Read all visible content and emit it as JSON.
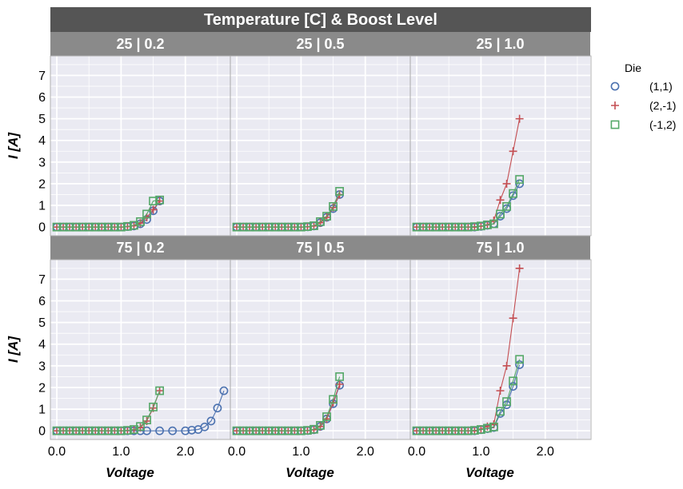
{
  "chart_data": {
    "type": "scatter",
    "title": "Temperature [C] & Boost Level",
    "xlabel": "Voltage",
    "ylabel": "I [A]",
    "xlim": [
      -0.1,
      2.7
    ],
    "ylim": [
      -0.4,
      7.9
    ],
    "xticks": [
      "0.0",
      "1.0",
      "2.0"
    ],
    "xtick_values": [
      0,
      1,
      2
    ],
    "yticks": [
      "0",
      "1",
      "2",
      "3",
      "4",
      "5",
      "6",
      "7"
    ],
    "ytick_values": [
      0,
      1,
      2,
      3,
      4,
      5,
      6,
      7
    ],
    "grid": true,
    "legend": {
      "title": "Die",
      "position": "right",
      "entries": [
        {
          "label": "(1,1)",
          "color": "#4c72b0",
          "marker": "circle"
        },
        {
          "label": "(2,-1)",
          "color": "#c44e52",
          "marker": "plus"
        },
        {
          "label": "(-1,2)",
          "color": "#55a868",
          "marker": "square"
        }
      ]
    },
    "panels": [
      {
        "title": "25 | 0.2",
        "series": [
          {
            "name": "(1,1)",
            "x": [
              0,
              0.1,
              0.2,
              0.3,
              0.4,
              0.5,
              0.6,
              0.7,
              0.8,
              0.9,
              1.0,
              1.1,
              1.2,
              1.3,
              1.4,
              1.5,
              1.6
            ],
            "y": [
              0,
              0,
              0,
              0,
              0,
              0,
              0,
              0,
              0,
              0,
              0,
              0.02,
              0.05,
              0.15,
              0.35,
              0.75,
              1.2
            ]
          },
          {
            "name": "(2,-1)",
            "x": [
              0,
              0.1,
              0.2,
              0.3,
              0.4,
              0.5,
              0.6,
              0.7,
              0.8,
              0.9,
              1.0,
              1.1,
              1.2,
              1.3,
              1.4,
              1.5,
              1.6
            ],
            "y": [
              0,
              0,
              0,
              0,
              0,
              0,
              0,
              0,
              0,
              0,
              0,
              0.02,
              0.06,
              0.18,
              0.45,
              0.8,
              1.2
            ]
          },
          {
            "name": "(-1,2)",
            "x": [
              0,
              0.1,
              0.2,
              0.3,
              0.4,
              0.5,
              0.6,
              0.7,
              0.8,
              0.9,
              1.0,
              1.1,
              1.2,
              1.3,
              1.4,
              1.5,
              1.6
            ],
            "y": [
              0,
              0,
              0,
              0,
              0,
              0,
              0,
              0,
              0,
              0,
              0,
              0.03,
              0.08,
              0.25,
              0.6,
              1.2,
              1.25
            ]
          }
        ]
      },
      {
        "title": "25 | 0.5",
        "series": [
          {
            "name": "(1,1)",
            "x": [
              0,
              0.1,
              0.2,
              0.3,
              0.4,
              0.5,
              0.6,
              0.7,
              0.8,
              0.9,
              1.0,
              1.1,
              1.2,
              1.3,
              1.4,
              1.5,
              1.6
            ],
            "y": [
              0,
              0,
              0,
              0,
              0,
              0,
              0,
              0,
              0,
              0,
              0,
              0.01,
              0.05,
              0.2,
              0.45,
              0.85,
              1.5
            ]
          },
          {
            "name": "(2,-1)",
            "x": [
              0,
              0.1,
              0.2,
              0.3,
              0.4,
              0.5,
              0.6,
              0.7,
              0.8,
              0.9,
              1.0,
              1.1,
              1.2,
              1.3,
              1.4,
              1.5,
              1.6
            ],
            "y": [
              0,
              0,
              0,
              0,
              0,
              0,
              0,
              0,
              0,
              0,
              0,
              0.01,
              0.05,
              0.2,
              0.45,
              0.9,
              1.5
            ]
          },
          {
            "name": "(-1,2)",
            "x": [
              0,
              0.1,
              0.2,
              0.3,
              0.4,
              0.5,
              0.6,
              0.7,
              0.8,
              0.9,
              1.0,
              1.1,
              1.2,
              1.3,
              1.4,
              1.5,
              1.6
            ],
            "y": [
              0,
              0,
              0,
              0,
              0,
              0,
              0,
              0,
              0,
              0,
              0,
              0.02,
              0.06,
              0.25,
              0.5,
              0.95,
              1.65
            ]
          }
        ]
      },
      {
        "title": "25 | 1.0",
        "series": [
          {
            "name": "(1,1)",
            "x": [
              0,
              0.1,
              0.2,
              0.3,
              0.4,
              0.5,
              0.6,
              0.7,
              0.8,
              0.9,
              1.0,
              1.1,
              1.2,
              1.3,
              1.4,
              1.5,
              1.6
            ],
            "y": [
              0,
              0,
              0,
              0,
              0,
              0,
              0,
              0,
              0,
              0,
              0.03,
              0.08,
              0.15,
              0.5,
              0.85,
              1.45,
              2.0
            ]
          },
          {
            "name": "(2,-1)",
            "x": [
              0,
              0.1,
              0.2,
              0.3,
              0.4,
              0.5,
              0.6,
              0.7,
              0.8,
              0.9,
              1.0,
              1.1,
              1.2,
              1.3,
              1.4,
              1.5,
              1.6
            ],
            "y": [
              0,
              0,
              0,
              0,
              0,
              0,
              0,
              0,
              0,
              0,
              0.04,
              0.1,
              0.3,
              1.25,
              2.0,
              3.5,
              5.0
            ]
          },
          {
            "name": "(-1,2)",
            "x": [
              0,
              0.1,
              0.2,
              0.3,
              0.4,
              0.5,
              0.6,
              0.7,
              0.8,
              0.9,
              1.0,
              1.1,
              1.2,
              1.3,
              1.4,
              1.5,
              1.6
            ],
            "y": [
              0,
              0,
              0,
              0,
              0,
              0,
              0,
              0,
              0,
              0.02,
              0.05,
              0.1,
              0.15,
              0.6,
              0.95,
              1.55,
              2.2
            ]
          }
        ]
      },
      {
        "title": "75 | 0.2",
        "series": [
          {
            "name": "(1,1)",
            "x": [
              0,
              0.1,
              0.2,
              0.3,
              0.4,
              0.5,
              0.6,
              0.7,
              0.8,
              0.9,
              1.0,
              1.1,
              1.2,
              1.3,
              1.4,
              1.6,
              1.8,
              2.0,
              2.1,
              2.2,
              2.3,
              2.4,
              2.5,
              2.6
            ],
            "y": [
              0,
              0,
              0,
              0,
              0,
              0,
              0,
              0,
              0,
              0,
              0,
              0,
              0,
              0,
              0,
              0,
              0,
              0,
              0.03,
              0.06,
              0.18,
              0.45,
              1.05,
              1.85
            ]
          },
          {
            "name": "(2,-1)",
            "x": [
              0,
              0.1,
              0.2,
              0.3,
              0.4,
              0.5,
              0.6,
              0.7,
              0.8,
              0.9,
              1.0,
              1.1,
              1.2,
              1.3,
              1.4,
              1.5,
              1.6
            ],
            "y": [
              0,
              0,
              0,
              0,
              0,
              0,
              0,
              0,
              0,
              0,
              0,
              0.02,
              0.05,
              0.15,
              0.45,
              1.05,
              1.85
            ]
          },
          {
            "name": "(-1,2)",
            "x": [
              0,
              0.1,
              0.2,
              0.3,
              0.4,
              0.5,
              0.6,
              0.7,
              0.8,
              0.9,
              1.0,
              1.1,
              1.2,
              1.3,
              1.4,
              1.5,
              1.6
            ],
            "y": [
              0,
              0,
              0,
              0,
              0,
              0,
              0,
              0,
              0,
              0,
              0,
              0.02,
              0.06,
              0.2,
              0.5,
              1.1,
              1.85
            ]
          }
        ]
      },
      {
        "title": "75 | 0.5",
        "series": [
          {
            "name": "(1,1)",
            "x": [
              0,
              0.1,
              0.2,
              0.3,
              0.4,
              0.5,
              0.6,
              0.7,
              0.8,
              0.9,
              1.0,
              1.1,
              1.2,
              1.3,
              1.4,
              1.5,
              1.6
            ],
            "y": [
              0,
              0,
              0,
              0,
              0,
              0,
              0,
              0,
              0,
              0,
              0,
              0.01,
              0.05,
              0.2,
              0.55,
              1.25,
              2.1
            ]
          },
          {
            "name": "(2,-1)",
            "x": [
              0,
              0.1,
              0.2,
              0.3,
              0.4,
              0.5,
              0.6,
              0.7,
              0.8,
              0.9,
              1.0,
              1.1,
              1.2,
              1.3,
              1.4,
              1.5,
              1.6
            ],
            "y": [
              0,
              0,
              0,
              0,
              0,
              0,
              0,
              0,
              0,
              0,
              0,
              0.01,
              0.05,
              0.2,
              0.55,
              1.3,
              2.15
            ]
          },
          {
            "name": "(-1,2)",
            "x": [
              0,
              0.1,
              0.2,
              0.3,
              0.4,
              0.5,
              0.6,
              0.7,
              0.8,
              0.9,
              1.0,
              1.1,
              1.2,
              1.3,
              1.4,
              1.5,
              1.6
            ],
            "y": [
              0,
              0,
              0,
              0,
              0,
              0,
              0,
              0,
              0,
              0,
              0,
              0.02,
              0.07,
              0.25,
              0.65,
              1.45,
              2.5
            ]
          }
        ]
      },
      {
        "title": "75 | 1.0",
        "series": [
          {
            "name": "(1,1)",
            "x": [
              0,
              0.1,
              0.2,
              0.3,
              0.4,
              0.5,
              0.6,
              0.7,
              0.8,
              0.9,
              1.0,
              1.1,
              1.2,
              1.3,
              1.4,
              1.5,
              1.6
            ],
            "y": [
              0,
              0,
              0,
              0,
              0,
              0,
              0,
              0,
              0,
              0,
              0.05,
              0.1,
              0.15,
              0.8,
              1.2,
              2.05,
              3.05
            ]
          },
          {
            "name": "(2,-1)",
            "x": [
              0,
              0.1,
              0.2,
              0.3,
              0.4,
              0.5,
              0.6,
              0.7,
              0.8,
              0.9,
              1.0,
              1.1,
              1.2,
              1.3,
              1.4,
              1.5,
              1.6
            ],
            "y": [
              0,
              0,
              0,
              0,
              0,
              0,
              0,
              0,
              0,
              0,
              0.08,
              0.2,
              0.3,
              1.85,
              3.0,
              5.2,
              7.5
            ]
          },
          {
            "name": "(-1,2)",
            "x": [
              0,
              0.1,
              0.2,
              0.3,
              0.4,
              0.5,
              0.6,
              0.7,
              0.8,
              0.9,
              1.0,
              1.1,
              1.2,
              1.3,
              1.4,
              1.5,
              1.6
            ],
            "y": [
              0,
              0,
              0,
              0,
              0,
              0,
              0,
              0,
              0,
              0.02,
              0.06,
              0.12,
              0.18,
              0.9,
              1.35,
              2.3,
              3.3
            ]
          }
        ]
      }
    ]
  }
}
